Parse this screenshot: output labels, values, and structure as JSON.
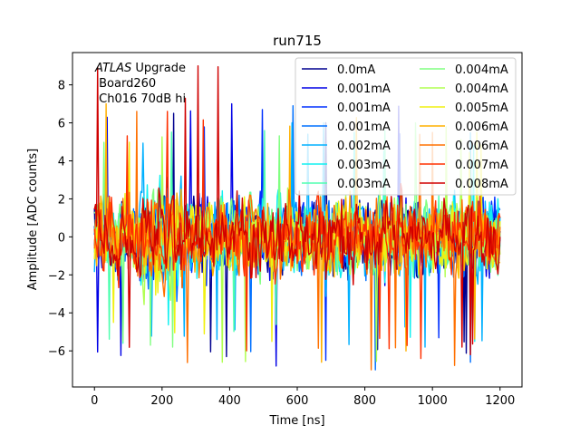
{
  "chart_data": {
    "type": "line",
    "title": "run715",
    "xlabel": "Time [ns]",
    "ylabel": "Amplitude [ADC counts]",
    "xlim": [
      -65,
      1265
    ],
    "ylim": [
      -7.9,
      9.7
    ],
    "xticks": [
      0,
      200,
      400,
      600,
      800,
      1000,
      1200
    ],
    "yticks": [
      -6,
      -4,
      -2,
      0,
      2,
      4,
      6,
      8
    ],
    "grid": false,
    "legend_position": "top-right",
    "legend_columns": 2,
    "annotation": {
      "line1_italic": "ATLAS",
      "line1_rest": " Upgrade",
      "line2": " Board260",
      "line3": " Ch016 70dB hi"
    },
    "series": [
      {
        "name": "0.0mA",
        "color": "#00008f",
        "x_range": [
          0,
          1200
        ],
        "mean": 0.0,
        "amplitude": 2.0,
        "min": -6.3,
        "max": 6.5
      },
      {
        "name": "0.001mA",
        "color": "#0000e6",
        "x_range": [
          0,
          1200
        ],
        "mean": 0.0,
        "amplitude": 2.0,
        "min": -6.8,
        "max": 7.0
      },
      {
        "name": "0.001mA",
        "color": "#0030ff",
        "x_range": [
          0,
          1200
        ],
        "mean": 0.0,
        "amplitude": 2.0,
        "min": -6.5,
        "max": 6.7
      },
      {
        "name": "0.001mA",
        "color": "#0070ff",
        "x_range": [
          0,
          1200
        ],
        "mean": 0.0,
        "amplitude": 2.0,
        "min": -7.0,
        "max": 6.9
      },
      {
        "name": "0.002mA",
        "color": "#00b0ff",
        "x_range": [
          0,
          1200
        ],
        "mean": 0.0,
        "amplitude": 2.0,
        "min": -5.8,
        "max": 6.0
      },
      {
        "name": "0.003mA",
        "color": "#10f0f0",
        "x_range": [
          0,
          1200
        ],
        "mean": 0.0,
        "amplitude": 2.0,
        "min": -5.5,
        "max": 5.5
      },
      {
        "name": "0.003mA",
        "color": "#50ffb0",
        "x_range": [
          0,
          1200
        ],
        "mean": 0.0,
        "amplitude": 2.0,
        "min": -5.6,
        "max": 5.6
      },
      {
        "name": "0.004mA",
        "color": "#80ff80",
        "x_range": [
          0,
          1200
        ],
        "mean": 0.0,
        "amplitude": 2.0,
        "min": -5.8,
        "max": 6.0
      },
      {
        "name": "0.004mA",
        "color": "#b0ff50",
        "x_range": [
          0,
          1200
        ],
        "mean": 0.0,
        "amplitude": 2.0,
        "min": -6.6,
        "max": 5.8
      },
      {
        "name": "0.005mA",
        "color": "#f0f010",
        "x_range": [
          0,
          1200
        ],
        "mean": 0.0,
        "amplitude": 2.0,
        "min": -5.5,
        "max": 5.5
      },
      {
        "name": "0.006mA",
        "color": "#ffb000",
        "x_range": [
          0,
          1200
        ],
        "mean": 0.0,
        "amplitude": 2.0,
        "min": -6.6,
        "max": 7.0
      },
      {
        "name": "0.006mA",
        "color": "#ff7000",
        "x_range": [
          0,
          1200
        ],
        "mean": 0.0,
        "amplitude": 2.0,
        "min": -7.0,
        "max": 6.6
      },
      {
        "name": "0.007mA",
        "color": "#ff3000",
        "x_range": [
          0,
          1200
        ],
        "mean": 0.0,
        "amplitude": 2.0,
        "min": -6.4,
        "max": 6.6
      },
      {
        "name": "0.008mA",
        "color": "#d00000",
        "x_range": [
          0,
          1200
        ],
        "mean": 0.0,
        "amplitude": 2.0,
        "min": -6.2,
        "max": 9.0
      }
    ]
  }
}
